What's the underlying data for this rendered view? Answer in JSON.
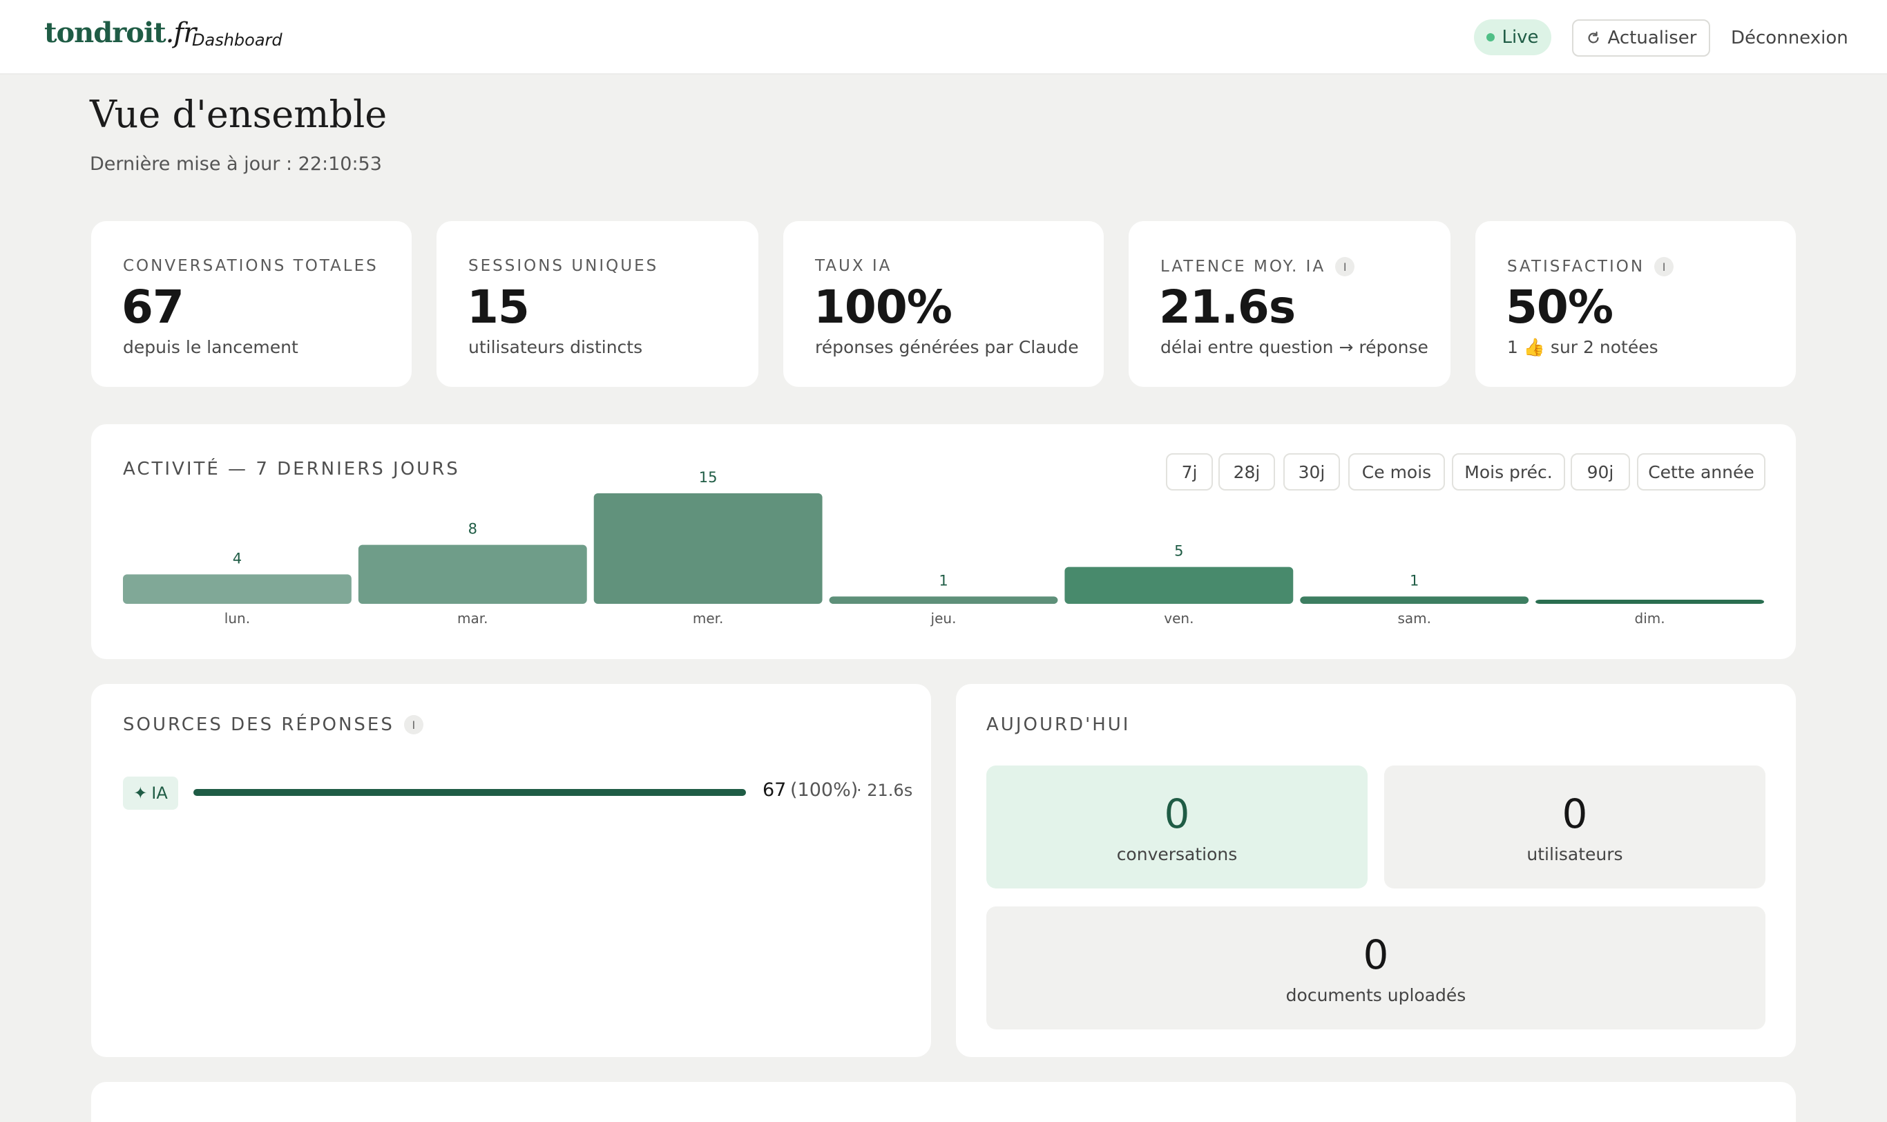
{
  "header": {
    "brand_main": "tondroit",
    "brand_tld": ".fr",
    "brand_sub": "Dashboard",
    "live_label": "Live",
    "refresh_label": "Actualiser",
    "logout_label": "Déconnexion",
    "accent": "#1f5c45"
  },
  "page": {
    "title": "Vue d'ensemble",
    "updated_label": "Dernière mise à jour : 22:10:53"
  },
  "kpis": [
    {
      "label": "Conversations totales",
      "value": "67",
      "sub": "depuis le lancement"
    },
    {
      "label": "Sessions uniques",
      "value": "15",
      "sub": "utilisateurs distincts"
    },
    {
      "label": "Taux IA",
      "value": "100%",
      "sub": "réponses générées par Claude"
    },
    {
      "label": "Latence moy. IA",
      "value": "21.6s",
      "sub": "délai entre question → réponse",
      "info": "i"
    },
    {
      "label": "Satisfaction",
      "value": "50%",
      "sub": "1 👍 sur 2 notées",
      "info": "i"
    }
  ],
  "activity": {
    "title": "Activité — 7 derniers jours",
    "ranges": [
      "7j",
      "28j",
      "30j",
      "Ce mois",
      "Mois préc.",
      "90j",
      "Cette année"
    ]
  },
  "chart_data": {
    "type": "bar",
    "title": "Activité — 7 derniers jours",
    "categories": [
      "lun.",
      "mar.",
      "mer.",
      "jeu.",
      "ven.",
      "sam.",
      "dim."
    ],
    "values": [
      4,
      8,
      15,
      1,
      5,
      1,
      0
    ],
    "labels": [
      "4",
      "8",
      "15",
      "1",
      "5",
      "1",
      ""
    ],
    "bar_colors": [
      "#80a897",
      "#6f9d89",
      "#61927c",
      "#5e9079",
      "#488a6c",
      "#3d7e61",
      "#2a6e50"
    ],
    "ylim": [
      0,
      15
    ],
    "grid": false,
    "legend": "none"
  },
  "sources": {
    "title": "Sources des réponses",
    "info": "i",
    "rows": [
      {
        "tag": "IA",
        "tag_icon": "sparkle-icon",
        "count": "67",
        "pct": "(100%)",
        "latency": "· 21.6s",
        "fill": 1.0
      }
    ]
  },
  "today": {
    "title": "Aujourd'hui",
    "tiles": [
      {
        "value": "0",
        "label": "conversations"
      },
      {
        "value": "0",
        "label": "utilisateurs"
      },
      {
        "value": "0",
        "label": "documents uploadés"
      }
    ]
  }
}
